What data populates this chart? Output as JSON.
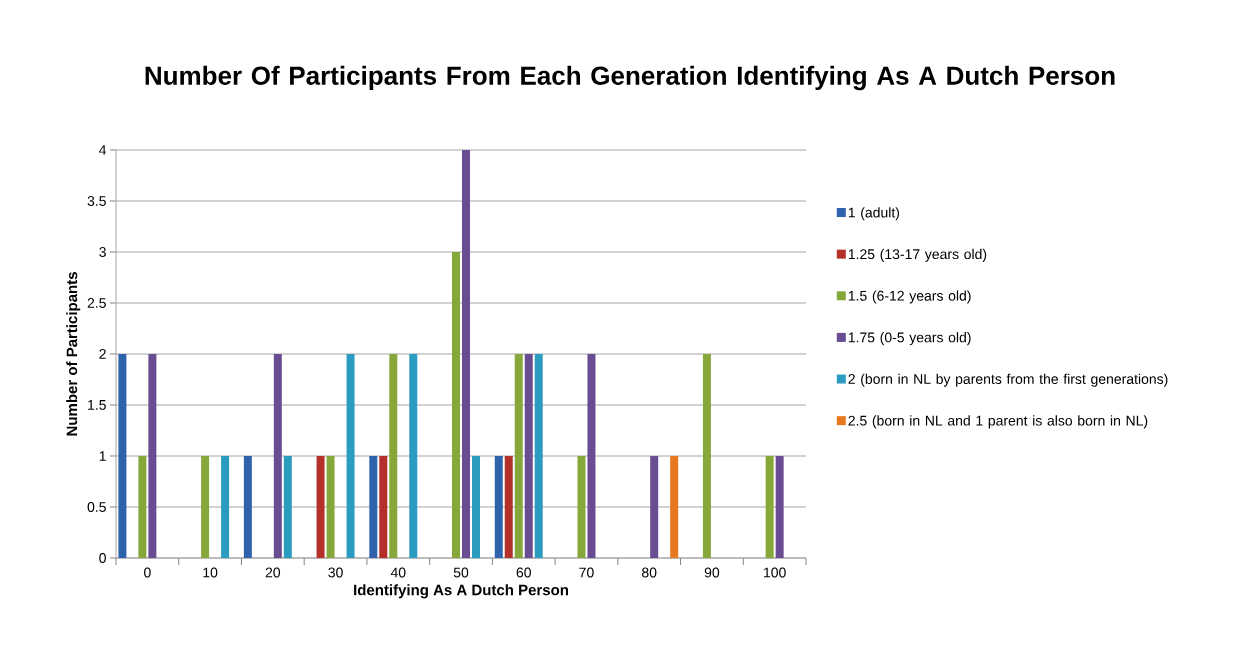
{
  "chart_data": {
    "type": "bar",
    "title": "Number Of Participants From Each Generation Identifying As A Dutch Person",
    "xlabel": "Identifying As A Dutch Person",
    "ylabel": "Number of Participants",
    "categories": [
      "0",
      "10",
      "20",
      "30",
      "40",
      "50",
      "60",
      "70",
      "80",
      "90",
      "100"
    ],
    "series": [
      {
        "name": "1 (adult)",
        "color": "#2f62ad",
        "values": [
          2,
          0,
          1,
          0,
          1,
          0,
          1,
          0,
          0,
          0,
          0
        ]
      },
      {
        "name": "1.25 (13-17 years old)",
        "color": "#b3302b",
        "values": [
          0,
          0,
          0,
          1,
          1,
          0,
          1,
          0,
          0,
          0,
          0
        ]
      },
      {
        "name": "1.5 (6-12 years old)",
        "color": "#86a83a",
        "values": [
          1,
          1,
          0,
          1,
          2,
          3,
          2,
          1,
          0,
          2,
          1
        ]
      },
      {
        "name": "1.75 (0-5 years old)",
        "color": "#6a4c93",
        "values": [
          2,
          0,
          2,
          0,
          0,
          4,
          2,
          2,
          1,
          0,
          1
        ]
      },
      {
        "name": "2 (born in NL by parents from the first generations)",
        "color": "#2b9bbf",
        "values": [
          0,
          1,
          1,
          2,
          2,
          1,
          2,
          0,
          0,
          0,
          0
        ]
      },
      {
        "name": "2.5 (born in NL and 1 parent is also born in NL)",
        "color": "#e8781e",
        "values": [
          0,
          0,
          0,
          0,
          0,
          0,
          0,
          0,
          1,
          0,
          0
        ]
      }
    ],
    "ylim": [
      0,
      4
    ],
    "yticks": [
      0,
      0.5,
      1,
      1.5,
      2,
      2.5,
      3,
      3.5,
      4
    ],
    "grid": "y",
    "legend": "right"
  }
}
